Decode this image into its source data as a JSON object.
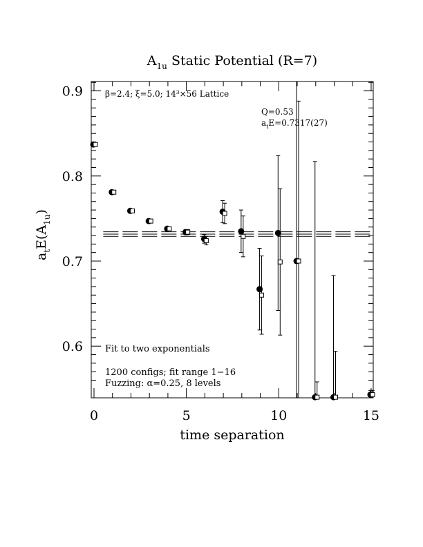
{
  "chart_data": {
    "type": "scatter",
    "title_main": "A",
    "title_sub": "1u",
    "title_rest": " Static Potential (R=7)",
    "xlabel": "time separation",
    "ylabel_parts": {
      "a": "a",
      "t": "t",
      "E": "E(A",
      "sub": "1u",
      "close": ")"
    },
    "xlim": [
      0,
      15
    ],
    "ylim": [
      0.54,
      0.913
    ],
    "x_ticks": [
      0,
      5,
      10,
      15
    ],
    "x_tick_labels": [
      "0",
      "5",
      "10",
      "15"
    ],
    "y_ticks": [
      0.6,
      0.7,
      0.8,
      0.9
    ],
    "y_tick_labels": [
      "0.6",
      "0.7",
      "0.8",
      "0.9"
    ],
    "annotations": {
      "lattice": "β=2.4; ξ=5.0; 14³×56 Lattice",
      "q": "Q=0.53",
      "fit_prefix": "a",
      "fit_sub": "t",
      "fit_value": "E=0.7317(27)",
      "fit_desc": "Fit to two exponentials",
      "configs": "1200 configs; fit range 1−16",
      "fuzzing": "Fuzzing: α=0.25, 8 levels"
    },
    "fit": {
      "value": 0.7317,
      "error": 0.0027
    },
    "series": [
      {
        "marker": "filled-circle",
        "points": [
          {
            "x": 0,
            "y": 0.837,
            "err": 0.002
          },
          {
            "x": 1,
            "y": 0.781,
            "err": 0.002
          },
          {
            "x": 2,
            "y": 0.759,
            "err": 0.002
          },
          {
            "x": 3,
            "y": 0.747,
            "err": 0.002
          },
          {
            "x": 4,
            "y": 0.738,
            "err": 0.002
          },
          {
            "x": 5,
            "y": 0.734,
            "err": 0.003
          },
          {
            "x": 6,
            "y": 0.726,
            "err": 0.005
          },
          {
            "x": 7,
            "y": 0.758,
            "err": 0.013
          },
          {
            "x": 8,
            "y": 0.735,
            "err": 0.025
          },
          {
            "x": 9,
            "y": 0.667,
            "err": 0.048
          },
          {
            "x": 10,
            "y": 0.733,
            "err": 0.091
          },
          {
            "x": 11,
            "y": 0.7,
            "err": 0.25
          },
          {
            "x": 12,
            "y": 0.54,
            "err": 0.277
          },
          {
            "x": 13,
            "y": 0.54,
            "err": 0.143
          },
          {
            "x": 15,
            "y": 0.543,
            "err": 0.005
          }
        ]
      },
      {
        "marker": "open-square",
        "points": [
          {
            "x": 0,
            "y": 0.837,
            "err": 0.002
          },
          {
            "x": 1,
            "y": 0.781,
            "err": 0.002
          },
          {
            "x": 2,
            "y": 0.759,
            "err": 0.002
          },
          {
            "x": 3,
            "y": 0.747,
            "err": 0.002
          },
          {
            "x": 4,
            "y": 0.738,
            "err": 0.002
          },
          {
            "x": 5,
            "y": 0.734,
            "err": 0.003
          },
          {
            "x": 6,
            "y": 0.724,
            "err": 0.005
          },
          {
            "x": 7,
            "y": 0.756,
            "err": 0.012
          },
          {
            "x": 8,
            "y": 0.729,
            "err": 0.024
          },
          {
            "x": 9,
            "y": 0.66,
            "err": 0.046
          },
          {
            "x": 10,
            "y": 0.699,
            "err": 0.086
          },
          {
            "x": 11,
            "y": 0.7,
            "err": 0.188
          },
          {
            "x": 12,
            "y": 0.54,
            "err": 0.018
          },
          {
            "x": 13,
            "y": 0.54,
            "err": 0.054
          },
          {
            "x": 15,
            "y": 0.543,
            "err": 0.005
          }
        ]
      }
    ]
  }
}
